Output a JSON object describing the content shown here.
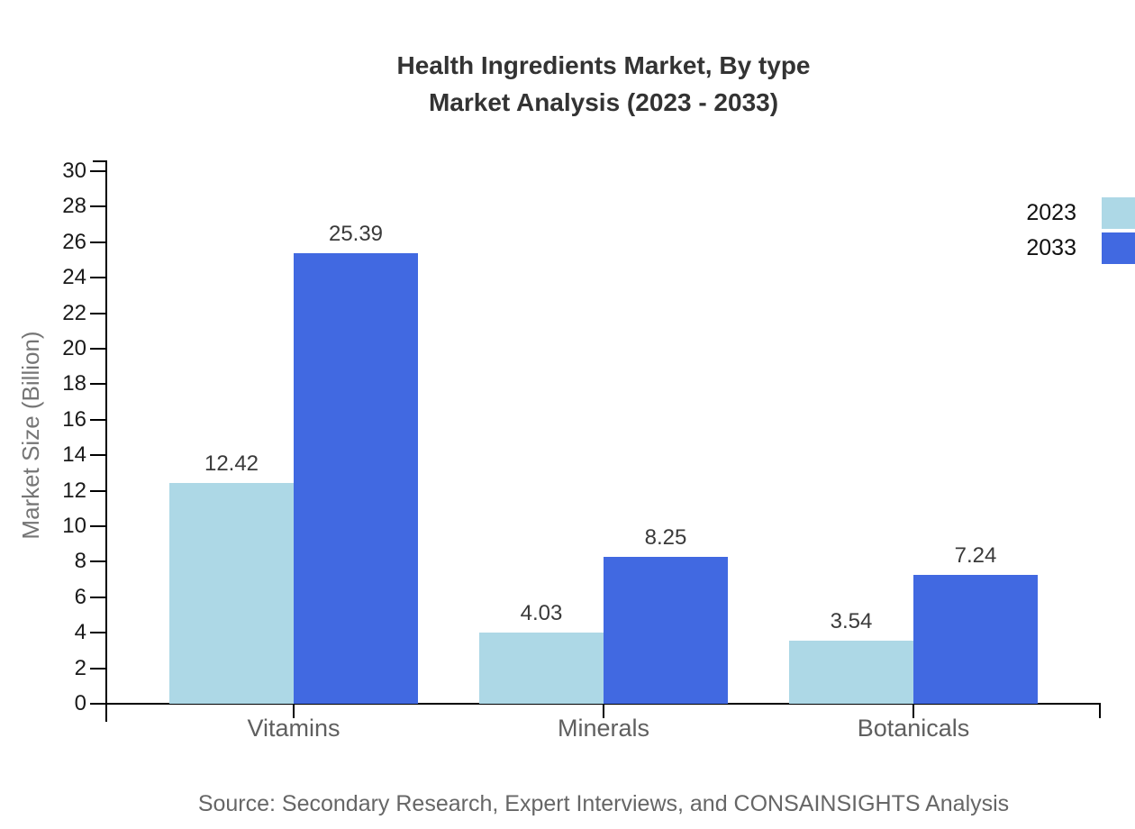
{
  "title": {
    "line1": "Health Ingredients Market, By type",
    "line2": "Market Analysis (2023 - 2033)"
  },
  "chart_data": {
    "type": "bar",
    "categories": [
      "Vitamins",
      "Minerals",
      "Botanicals"
    ],
    "series": [
      {
        "name": "2023",
        "color": "#ADD8E6",
        "values": [
          12.42,
          4.03,
          3.54
        ]
      },
      {
        "name": "2033",
        "color": "#4169E1",
        "values": [
          25.39,
          8.25,
          7.24
        ]
      }
    ],
    "title": "Health Ingredients Market, By type Market Analysis (2023 - 2033)",
    "xlabel": "",
    "ylabel": "Market Size (Billion)",
    "ylim": [
      0,
      30
    ],
    "ytick_step": 2,
    "yticks": [
      0,
      2,
      4,
      6,
      8,
      10,
      12,
      14,
      16,
      18,
      20,
      22,
      24,
      26,
      28,
      30
    ],
    "grid": false,
    "legend_position": "top-right",
    "value_labels": true
  },
  "source_note": "Source: Secondary Research, Expert Interviews, and CONSAINSIGHTS Analysis",
  "colors": {
    "series_2023": "#ADD8E6",
    "series_2033": "#4169E1",
    "axis": "#000000",
    "title_text": "#333333",
    "value_label_text": "#3a3a3a",
    "category_text": "#5f5f5f",
    "axis_label_text": "#757575",
    "source_text": "#666666"
  }
}
